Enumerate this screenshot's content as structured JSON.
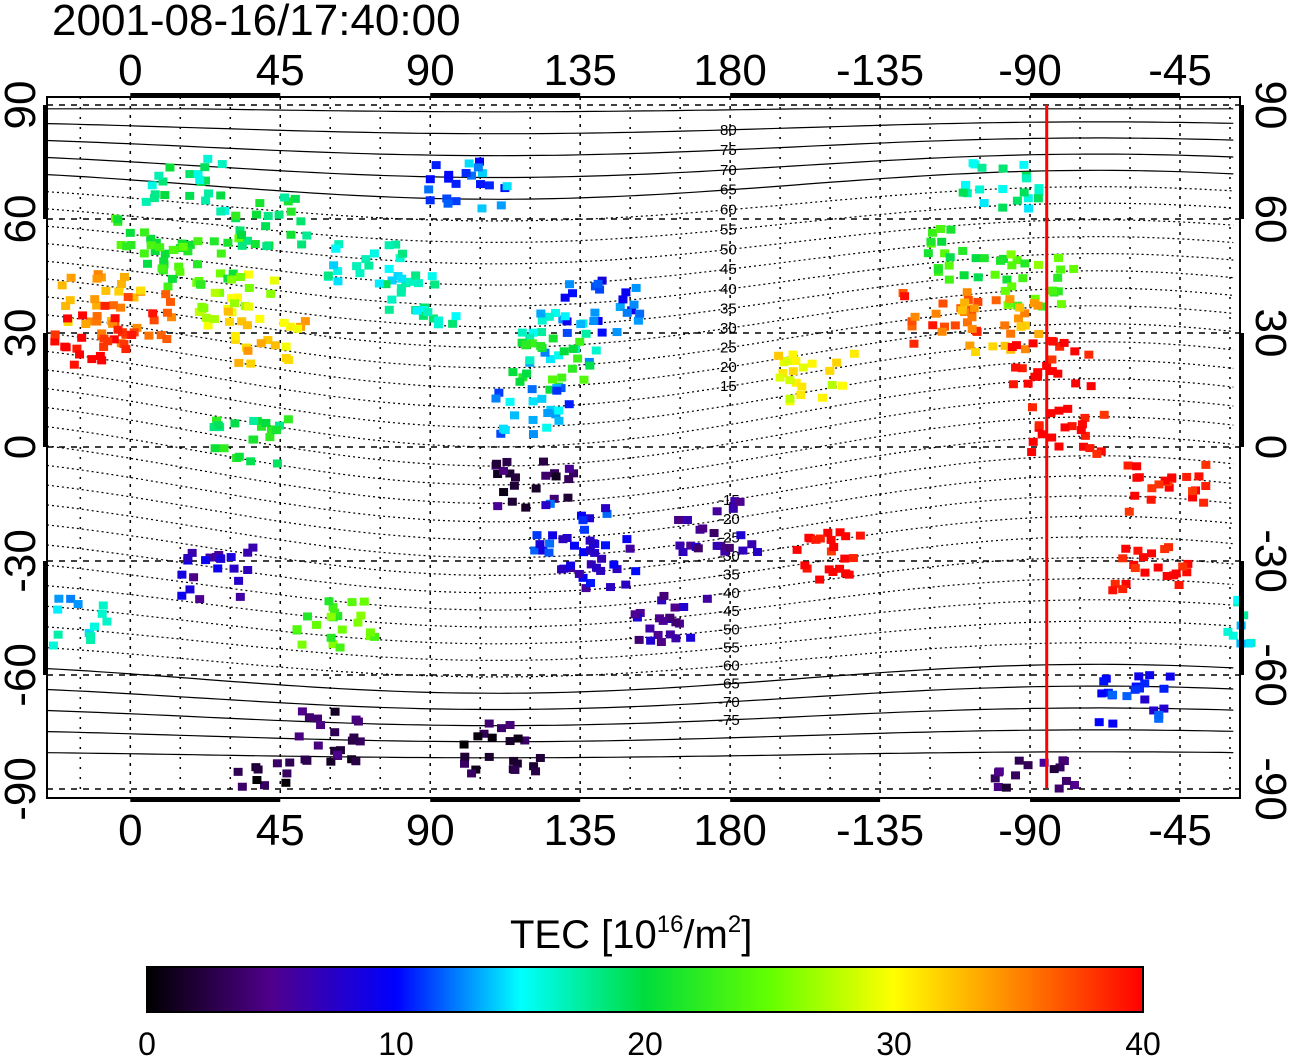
{
  "chart_data": {
    "type": "heatmap",
    "title": "2001-08-16/17:40:00",
    "x_ticks": [
      "0",
      "45",
      "90",
      "135",
      "180",
      "-135",
      "-90",
      "-45"
    ],
    "x_tick_values": [
      0,
      45,
      90,
      135,
      180,
      225,
      270,
      315
    ],
    "y_ticks": [
      "90",
      "60",
      "30",
      "0",
      "-30",
      "-60",
      "-90"
    ],
    "y_tick_values": [
      90,
      60,
      30,
      0,
      -30,
      -60,
      -90
    ],
    "xlim": [
      -25,
      333
    ],
    "ylim": [
      -90,
      90
    ],
    "grid": true,
    "marker_longitude": -85,
    "marker_color": "#ff0000",
    "contour_labels_north": [
      "80",
      "75",
      "70",
      "65",
      "60",
      "55",
      "50",
      "45",
      "40",
      "35",
      "30",
      "25",
      "20",
      "15"
    ],
    "contour_labels_south": [
      "-15",
      "-20",
      "-25",
      "-30",
      "-35",
      "-40",
      "-45",
      "-50",
      "-55",
      "-60",
      "-65",
      "-70",
      "-75"
    ],
    "colorbar": {
      "label": "TEC  [10",
      "label_sup": "16",
      "label_unit": "/m",
      "label_sup2": "2",
      "label_end": "]",
      "ticks": [
        "0",
        "10",
        "20",
        "30",
        "40"
      ],
      "range": [
        0,
        40
      ]
    },
    "clusters": [
      {
        "lon": 5,
        "lat": 55,
        "tec": 22
      },
      {
        "lon": 20,
        "lat": 50,
        "tec": 23
      },
      {
        "lon": -10,
        "lat": 40,
        "tec": 33
      },
      {
        "lon": 0,
        "lat": 35,
        "tec": 37
      },
      {
        "lon": -12,
        "lat": 29,
        "tec": 40
      },
      {
        "lon": 30,
        "lat": 40,
        "tec": 28
      },
      {
        "lon": 40,
        "lat": 30,
        "tec": 32
      },
      {
        "lon": 15,
        "lat": 70,
        "tec": 18
      },
      {
        "lon": 40,
        "lat": 60,
        "tec": 20
      },
      {
        "lon": 70,
        "lat": 50,
        "tec": 16
      },
      {
        "lon": 85,
        "lat": 40,
        "tec": 17
      },
      {
        "lon": 100,
        "lat": 70,
        "tec": 12
      },
      {
        "lon": 140,
        "lat": 38,
        "tec": 11
      },
      {
        "lon": 128,
        "lat": 30,
        "tec": 15
      },
      {
        "lon": 125,
        "lat": 23,
        "tec": 22
      },
      {
        "lon": 120,
        "lat": 10,
        "tec": 13
      },
      {
        "lon": 120,
        "lat": -8,
        "tec": 3
      },
      {
        "lon": 130,
        "lat": -20,
        "tec": 10
      },
      {
        "lon": 140,
        "lat": -30,
        "tec": 8
      },
      {
        "lon": 160,
        "lat": -45,
        "tec": 6
      },
      {
        "lon": 175,
        "lat": -20,
        "tec": 6
      },
      {
        "lon": 25,
        "lat": -32,
        "tec": 7
      },
      {
        "lon": 60,
        "lat": -45,
        "tec": 24
      },
      {
        "lon": -20,
        "lat": -45,
        "tec": 15
      },
      {
        "lon": 110,
        "lat": -78,
        "tec": 2
      },
      {
        "lon": 60,
        "lat": -75,
        "tec": 3
      },
      {
        "lon": -110,
        "lat": 52,
        "tec": 22
      },
      {
        "lon": -90,
        "lat": 45,
        "tec": 24
      },
      {
        "lon": -118,
        "lat": 35,
        "tec": 37
      },
      {
        "lon": -100,
        "lat": 33,
        "tec": 34
      },
      {
        "lon": -85,
        "lat": 22,
        "tec": 40
      },
      {
        "lon": -80,
        "lat": 5,
        "tec": 40
      },
      {
        "lon": -50,
        "lat": -10,
        "tec": 40
      },
      {
        "lon": -55,
        "lat": -32,
        "tec": 40
      },
      {
        "lon": -60,
        "lat": -65,
        "tec": 10
      },
      {
        "lon": -100,
        "lat": 70,
        "tec": 17
      },
      {
        "lon": -155,
        "lat": 20,
        "tec": 30
      },
      {
        "lon": -90,
        "lat": -87,
        "tec": 4
      },
      {
        "lon": 40,
        "lat": -87,
        "tec": 2
      },
      {
        "lon": -150,
        "lat": -28,
        "tec": 40
      },
      {
        "lon": 35,
        "lat": 3,
        "tec": 20
      }
    ]
  }
}
